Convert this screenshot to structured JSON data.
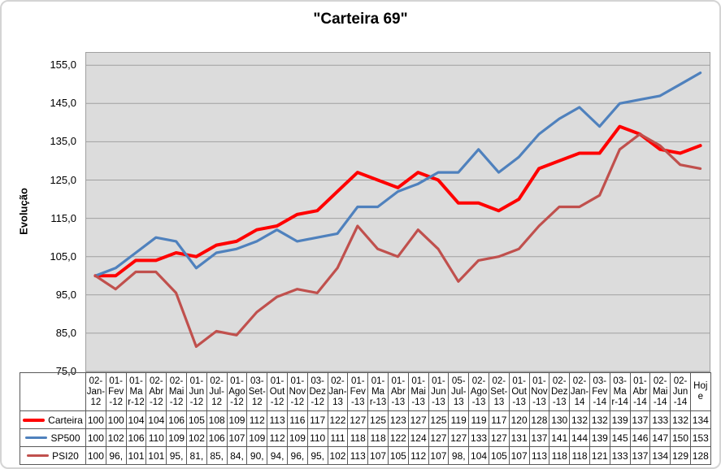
{
  "title": "\"Carteira 69\"",
  "y_axis": {
    "title": "Evolução",
    "ticks": [
      "155,0",
      "145,0",
      "135,0",
      "125,0",
      "115,0",
      "105,0",
      "95,0",
      "85,0",
      "75,0"
    ]
  },
  "colors": {
    "plot_background": "#dcdcdc",
    "gridline": "#a0a0a0",
    "table_border": "#595959",
    "carteira": "#ff0000",
    "sp500": "#4f81bd",
    "psi20": "#c0504d"
  },
  "chart_data": {
    "type": "line",
    "title": "\"Carteira 69\"",
    "xlabel": "",
    "ylabel": "Evolução",
    "ylim": [
      75,
      158.5
    ],
    "grid": true,
    "legend_position": "left-of-data-table",
    "categories": [
      "02-Jan-12",
      "01-Fev-12",
      "01-Mar-12",
      "02-Abr-12",
      "02-Mai-12",
      "01-Jun-12",
      "02-Jul-12",
      "01-Ago-12",
      "03-Set-12",
      "01-Out-12",
      "01-Nov-12",
      "03-Dez-12",
      "02-Jan-13",
      "01-Fev-13",
      "01-Mar-13",
      "01-Abr-13",
      "01-Mai-13",
      "01-Jun-13",
      "05-Jul-13",
      "02-Ago-13",
      "02-Set-13",
      "01-Out-13",
      "01-Nov-13",
      "02-Dez-13",
      "02-Jan-14",
      "03-Fev-14",
      "03-Mar-14",
      "01-Abr-14",
      "02-Mai-14",
      "02-Jun-14",
      "Hoje"
    ],
    "categories_display": [
      "02-\nJan-\n12",
      "01-\nFev\n-12",
      "01-\nMa\nr-12",
      "02-\nAbr\n-12",
      "02-\nMai\n-12",
      "01-\nJun\n-12",
      "02-\nJul-\n12",
      "01-\nAgo\n-12",
      "03-\nSet-\n12",
      "01-\nOut\n-12",
      "01-\nNov\n-12",
      "03-\nDez\n-12",
      "02-\nJan-\n13",
      "01-\nFev\n-13",
      "01-\nMa\nr-13",
      "01-\nAbr\n-13",
      "01-\nMai\n-13",
      "01-\nJun\n-13",
      "05-\nJul-\n13",
      "02-\nAgo\n-13",
      "02-\nSet-\n13",
      "01-\nOut\n-13",
      "01-\nNov\n-13",
      "02-\nDez\n-13",
      "02-\nJan-\n14",
      "03-\nFev\n-14",
      "03-\nMa\nr-14",
      "01-\nAbr\n-14",
      "02-\nMai\n-14",
      "02-\nJun\n-14",
      "Hoj\ne"
    ],
    "series": [
      {
        "name": "Carteira",
        "color": "#ff0000",
        "values": [
          100,
          100,
          104,
          104,
          106,
          105,
          108,
          109,
          112,
          113,
          116,
          117,
          122,
          127,
          125,
          123,
          127,
          125,
          119,
          119,
          117,
          120,
          128,
          130,
          132,
          132,
          139,
          137,
          133,
          132,
          134
        ],
        "display": [
          "100",
          "100",
          "104",
          "104",
          "106",
          "105",
          "108",
          "109",
          "112",
          "113",
          "116",
          "117",
          "122",
          "127",
          "125",
          "123",
          "127",
          "125",
          "119",
          "119",
          "117",
          "120",
          "128",
          "130",
          "132",
          "132",
          "139",
          "137",
          "133",
          "132",
          "134"
        ]
      },
      {
        "name": "SP500",
        "color": "#4f81bd",
        "values": [
          100,
          102,
          106,
          110,
          109,
          102,
          106,
          107,
          109,
          112,
          109,
          110,
          111,
          118,
          118,
          122,
          124,
          127,
          127,
          133,
          127,
          131,
          137,
          141,
          144,
          139,
          145,
          146,
          147,
          150,
          153
        ],
        "display": [
          "100",
          "102",
          "106",
          "110",
          "109",
          "102",
          "106",
          "107",
          "109",
          "112",
          "109",
          "110",
          "111",
          "118",
          "118",
          "122",
          "124",
          "127",
          "127",
          "133",
          "127",
          "131",
          "137",
          "141",
          "144",
          "139",
          "145",
          "146",
          "147",
          "150",
          "153"
        ]
      },
      {
        "name": "PSI20",
        "color": "#c0504d",
        "values": [
          100,
          96.5,
          101,
          101,
          95.5,
          81.5,
          85.5,
          84.5,
          90.5,
          94.5,
          96.5,
          95.5,
          102,
          113,
          107,
          105,
          112,
          107,
          98.5,
          104,
          105,
          107,
          113,
          118,
          118,
          121,
          133,
          137,
          134,
          129,
          128
        ],
        "display": [
          "100",
          "96,",
          "101",
          "101",
          "95,",
          "81,",
          "85,",
          "84,",
          "90,",
          "94,",
          "96,",
          "95,",
          "102",
          "113",
          "107",
          "105",
          "112",
          "107",
          "98,",
          "104",
          "105",
          "107",
          "113",
          "118",
          "118",
          "121",
          "133",
          "137",
          "134",
          "129",
          "128"
        ]
      }
    ]
  }
}
